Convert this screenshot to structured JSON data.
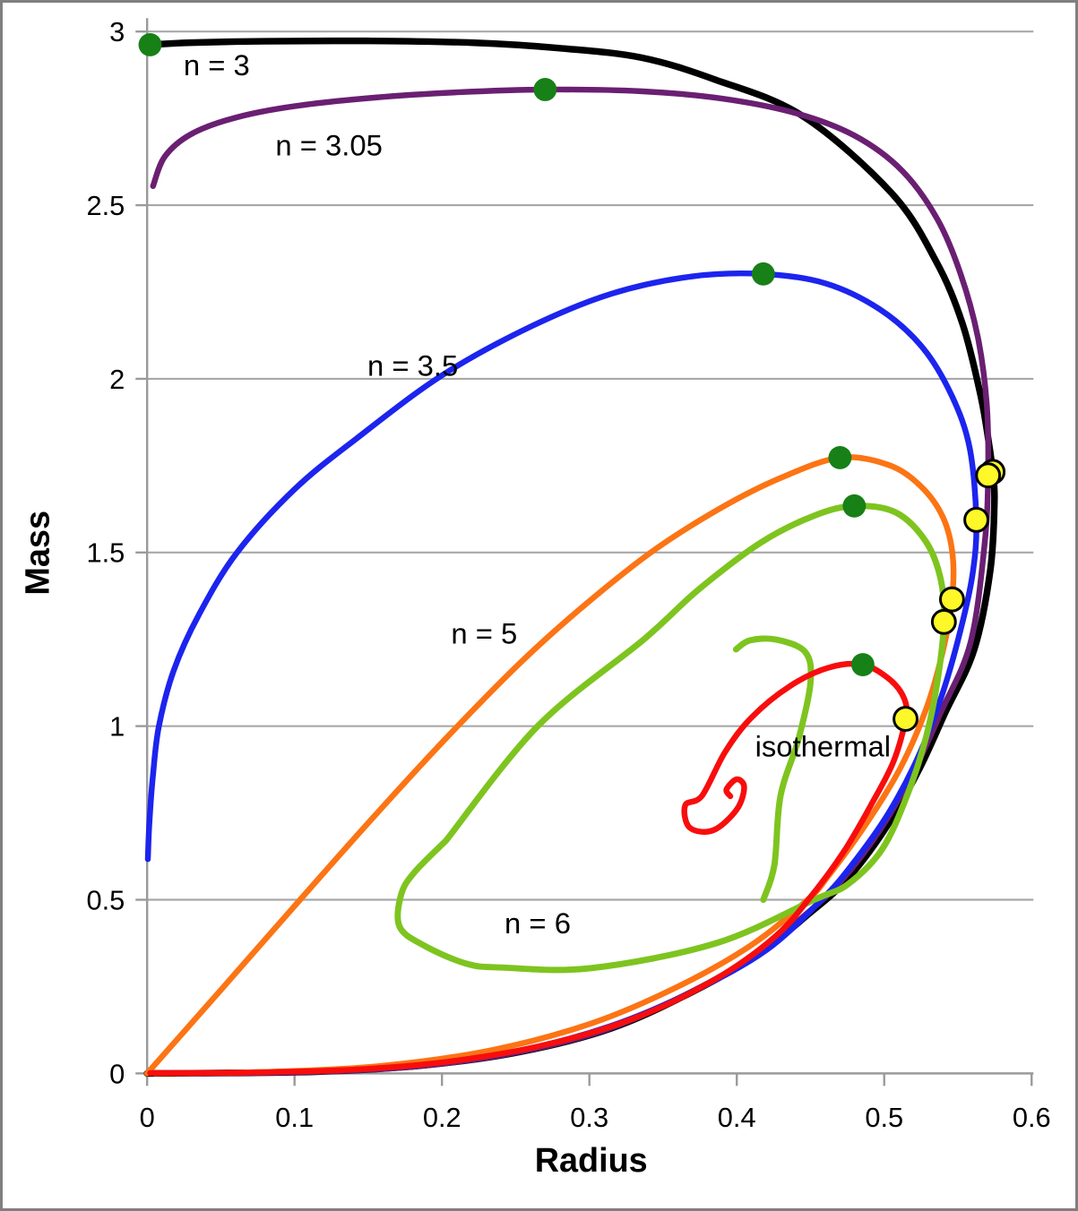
{
  "chart_data": {
    "type": "line",
    "title": "",
    "xlabel": "Radius",
    "ylabel": "Mass",
    "xlim": [
      0,
      0.6
    ],
    "ylim": [
      0,
      3
    ],
    "grid": "horizontal",
    "legend": "none (inline curve labels)",
    "x_ticks": [
      {
        "value": 0,
        "label": "0"
      },
      {
        "value": 0.1,
        "label": "0.1"
      },
      {
        "value": 0.2,
        "label": "0.2"
      },
      {
        "value": 0.3,
        "label": "0.3"
      },
      {
        "value": 0.4,
        "label": "0.4"
      },
      {
        "value": 0.5,
        "label": "0.5"
      },
      {
        "value": 0.6,
        "label": "0.6"
      }
    ],
    "y_ticks": [
      {
        "value": 0,
        "label": "0"
      },
      {
        "value": 0.5,
        "label": "0.5"
      },
      {
        "value": 1,
        "label": "1"
      },
      {
        "value": 1.5,
        "label": "1.5"
      },
      {
        "value": 2,
        "label": "2"
      },
      {
        "value": 2.5,
        "label": "2.5"
      },
      {
        "value": 3,
        "label": "3"
      }
    ],
    "colors": {
      "grid": "#a8a8a8",
      "axis": "#9a9a9a",
      "max_marker_green": "#178017",
      "critical_marker_yellow": "#fff829",
      "marker_outline": "#000000"
    },
    "series": [
      {
        "id": "n-3",
        "name": "n = 3",
        "color": "#000000",
        "width": 7.5,
        "segments": [
          [
            [
              0.002,
              2.962
            ],
            [
              0.03,
              2.968
            ],
            [
              0.08,
              2.972
            ],
            [
              0.15,
              2.973
            ],
            [
              0.22,
              2.968
            ],
            [
              0.28,
              2.952
            ],
            [
              0.335,
              2.925
            ],
            [
              0.385,
              2.862
            ],
            [
              0.445,
              2.756
            ],
            [
              0.505,
              2.535
            ],
            [
              0.535,
              2.34
            ],
            [
              0.553,
              2.16
            ],
            [
              0.5655,
              1.95
            ],
            [
              0.5715,
              1.8
            ],
            [
              0.5735,
              1.732
            ],
            [
              0.5748,
              1.65
            ],
            [
              0.572,
              1.45
            ],
            [
              0.561,
              1.22
            ],
            [
              0.5415,
              1.04
            ],
            [
              0.523,
              0.87
            ],
            [
              0.5,
              0.7
            ],
            [
              0.474,
              0.555
            ],
            [
              0.449,
              0.46
            ],
            [
              0.415,
              0.345
            ],
            [
              0.37,
              0.235
            ],
            [
              0.315,
              0.13
            ],
            [
              0.253,
              0.062
            ],
            [
              0.185,
              0.022
            ],
            [
              0.115,
              0.005
            ],
            [
              0.03,
              0.0005
            ],
            [
              0.0,
              0
            ]
          ]
        ]
      },
      {
        "id": "n-3-05",
        "name": "n = 3.05",
        "color": "#6a1f72",
        "width": 6.5,
        "segments": [
          [
            [
              0.004,
              2.555
            ],
            [
              0.012,
              2.64
            ],
            [
              0.03,
              2.705
            ],
            [
              0.06,
              2.752
            ],
            [
              0.1,
              2.785
            ],
            [
              0.155,
              2.81
            ],
            [
              0.21,
              2.825
            ],
            [
              0.27,
              2.833
            ],
            [
              0.335,
              2.828
            ],
            [
              0.39,
              2.807
            ],
            [
              0.44,
              2.765
            ],
            [
              0.48,
              2.7
            ],
            [
              0.512,
              2.6
            ],
            [
              0.536,
              2.46
            ],
            [
              0.552,
              2.3
            ],
            [
              0.5635,
              2.12
            ],
            [
              0.5695,
              1.93
            ],
            [
              0.5705,
              1.722
            ],
            [
              0.568,
              1.52
            ],
            [
              0.5585,
              1.24
            ],
            [
              0.5385,
              1.04
            ],
            [
              0.52,
              0.87
            ],
            [
              0.497,
              0.7
            ],
            [
              0.471,
              0.555
            ],
            [
              0.446,
              0.455
            ],
            [
              0.412,
              0.34
            ],
            [
              0.367,
              0.23
            ],
            [
              0.312,
              0.127
            ],
            [
              0.25,
              0.06
            ],
            [
              0.182,
              0.02
            ],
            [
              0.11,
              0.004
            ],
            [
              0.02,
              0
            ]
          ]
        ]
      },
      {
        "id": "n-3-5",
        "name": "n = 3.5",
        "color": "#1c24ee",
        "width": 6.5,
        "segments": [
          [
            [
              0.0005,
              0.617
            ],
            [
              0.0015,
              0.72
            ],
            [
              0.004,
              0.86
            ],
            [
              0.008,
              1.0
            ],
            [
              0.018,
              1.16
            ],
            [
              0.035,
              1.32
            ],
            [
              0.061,
              1.5
            ],
            [
              0.1,
              1.682
            ],
            [
              0.142,
              1.828
            ],
            [
              0.2,
              2.01
            ],
            [
              0.26,
              2.15
            ],
            [
              0.315,
              2.245
            ],
            [
              0.37,
              2.295
            ],
            [
              0.418,
              2.302
            ],
            [
              0.46,
              2.275
            ],
            [
              0.497,
              2.2
            ],
            [
              0.526,
              2.09
            ],
            [
              0.546,
              1.95
            ],
            [
              0.558,
              1.8
            ],
            [
              0.5625,
              1.594
            ],
            [
              0.56,
              1.44
            ],
            [
              0.552,
              1.28
            ],
            [
              0.54,
              1.1
            ],
            [
              0.524,
              0.92
            ],
            [
              0.503,
              0.75
            ],
            [
              0.478,
              0.6
            ],
            [
              0.4575,
              0.5
            ],
            [
              0.42,
              0.355
            ],
            [
              0.372,
              0.24
            ],
            [
              0.317,
              0.14
            ],
            [
              0.255,
              0.068
            ],
            [
              0.185,
              0.025
            ],
            [
              0.11,
              0.006
            ],
            [
              0.02,
              0
            ]
          ]
        ]
      },
      {
        "id": "n-5",
        "name": "n = 5",
        "color": "#fc7414",
        "width": 6.5,
        "segments": [
          [
            [
              0.0,
              0.0
            ],
            [
              0.052,
              0.25
            ],
            [
              0.1037,
              0.5
            ],
            [
              0.155,
              0.745
            ],
            [
              0.205,
              0.975
            ],
            [
              0.255,
              1.19
            ],
            [
              0.3,
              1.36
            ],
            [
              0.345,
              1.51
            ],
            [
              0.39,
              1.63
            ],
            [
              0.43,
              1.715
            ],
            [
              0.47,
              1.773
            ],
            [
              0.503,
              1.752
            ],
            [
              0.525,
              1.69
            ],
            [
              0.54,
              1.6
            ],
            [
              0.5465,
              1.49
            ],
            [
              0.546,
              1.365
            ],
            [
              0.54,
              1.22
            ],
            [
              0.5285,
              1.05
            ],
            [
              0.511,
              0.88
            ],
            [
              0.488,
              0.72
            ],
            [
              0.4615,
              0.565
            ],
            [
              0.448,
              0.5
            ],
            [
              0.41,
              0.37
            ],
            [
              0.36,
              0.25
            ],
            [
              0.302,
              0.145
            ],
            [
              0.235,
              0.068
            ],
            [
              0.16,
              0.022
            ],
            [
              0.08,
              0.004
            ],
            [
              0.005,
              0
            ]
          ]
        ]
      },
      {
        "id": "n-6",
        "name": "n = 6",
        "color": "#7ec41f",
        "width": 7,
        "segments": [
          [
            [
              0.2027,
              0.67
            ],
            [
              0.265,
              1.0
            ],
            [
              0.3376,
              1.252
            ],
            [
              0.374,
              1.393
            ],
            [
              0.4165,
              1.529
            ],
            [
              0.4525,
              1.606
            ],
            [
              0.4797,
              1.634
            ],
            [
              0.508,
              1.615
            ],
            [
              0.5285,
              1.53
            ],
            [
              0.5385,
              1.42
            ],
            [
              0.5405,
              1.3
            ],
            [
              0.5365,
              1.14
            ],
            [
              0.5285,
              0.97
            ],
            [
              0.5155,
              0.8
            ],
            [
              0.4985,
              0.645
            ],
            [
              0.4755,
              0.545
            ],
            [
              0.4525,
              0.5
            ],
            [
              0.386,
              0.375
            ],
            [
              0.301,
              0.303
            ],
            [
              0.2408,
              0.305
            ],
            [
              0.2166,
              0.316
            ],
            [
              0.1875,
              0.369
            ],
            [
              0.1712,
              0.423
            ],
            [
              0.1724,
              0.516
            ],
            [
              0.1815,
              0.58
            ],
            [
              0.2027,
              0.67
            ]
          ],
          [
            [
              0.418,
              0.5
            ],
            [
              0.4255,
              0.6
            ],
            [
              0.4296,
              0.798
            ],
            [
              0.442,
              0.965
            ],
            [
              0.45,
              1.126
            ],
            [
              0.4465,
              1.213
            ],
            [
              0.427,
              1.249
            ],
            [
              0.409,
              1.247
            ],
            [
              0.3995,
              1.221
            ]
          ]
        ]
      },
      {
        "id": "isothermal",
        "name": "isothermal",
        "color": "#f80d0d",
        "width": 6.5,
        "segments": [
          [
            [
              0.002,
              0.001
            ],
            [
              0.08,
              0.003
            ],
            [
              0.15,
              0.013
            ],
            [
              0.21,
              0.037
            ],
            [
              0.27,
              0.082
            ],
            [
              0.33,
              0.158
            ],
            [
              0.385,
              0.27
            ],
            [
              0.425,
              0.39
            ],
            [
              0.4485,
              0.5
            ],
            [
              0.472,
              0.635
            ],
            [
              0.492,
              0.78
            ],
            [
              0.5065,
              0.9
            ],
            [
              0.5145,
              1.021
            ],
            [
              0.5135,
              1.08
            ],
            [
              0.5035,
              1.135
            ],
            [
              0.4855,
              1.177
            ],
            [
              0.462,
              1.168
            ],
            [
              0.436,
              1.115
            ],
            [
              0.41,
              1.025
            ],
            [
              0.392,
              0.925
            ],
            [
              0.3765,
              0.8
            ],
            [
              0.365,
              0.772
            ],
            [
              0.368,
              0.708
            ],
            [
              0.384,
              0.7
            ],
            [
              0.4,
              0.76
            ],
            [
              0.405,
              0.824
            ],
            [
              0.4,
              0.847
            ],
            [
              0.393,
              0.818
            ],
            [
              0.3956,
              0.798
            ]
          ]
        ]
      }
    ],
    "green_dots": [
      {
        "series": "n = 3",
        "r": 0.002,
        "m": 2.962
      },
      {
        "series": "n = 3.05",
        "r": 0.27,
        "m": 2.833
      },
      {
        "series": "n = 3.5",
        "r": 0.418,
        "m": 2.302
      },
      {
        "series": "n = 5",
        "r": 0.47,
        "m": 1.773
      },
      {
        "series": "n = 6",
        "r": 0.4797,
        "m": 1.634
      },
      {
        "series": "isothermal",
        "r": 0.4855,
        "m": 1.177
      }
    ],
    "yellow_dots": [
      {
        "series": "n = 3",
        "r": 0.5735,
        "m": 1.732
      },
      {
        "series": "n = 3.05",
        "r": 0.5705,
        "m": 1.722
      },
      {
        "series": "n = 3.5",
        "r": 0.5625,
        "m": 1.594
      },
      {
        "series": "n = 5",
        "r": 0.546,
        "m": 1.365
      },
      {
        "series": "n = 6",
        "r": 0.5405,
        "m": 1.3
      },
      {
        "series": "isothermal",
        "r": 0.5145,
        "m": 1.021
      }
    ],
    "labels": [
      {
        "text": "n = 3",
        "r": 0.0472,
        "m": 2.905
      },
      {
        "text": "n = 3.05",
        "r": 0.1234,
        "m": 2.674
      },
      {
        "text": "n = 3.5",
        "r": 0.1802,
        "m": 2.04
      },
      {
        "text": "n = 5",
        "r": 0.2286,
        "m": 1.268
      },
      {
        "text": "n = 6",
        "r": 0.2649,
        "m": 0.434
      },
      {
        "text": "isothermal",
        "r": 0.4584,
        "m": 0.944
      }
    ]
  }
}
